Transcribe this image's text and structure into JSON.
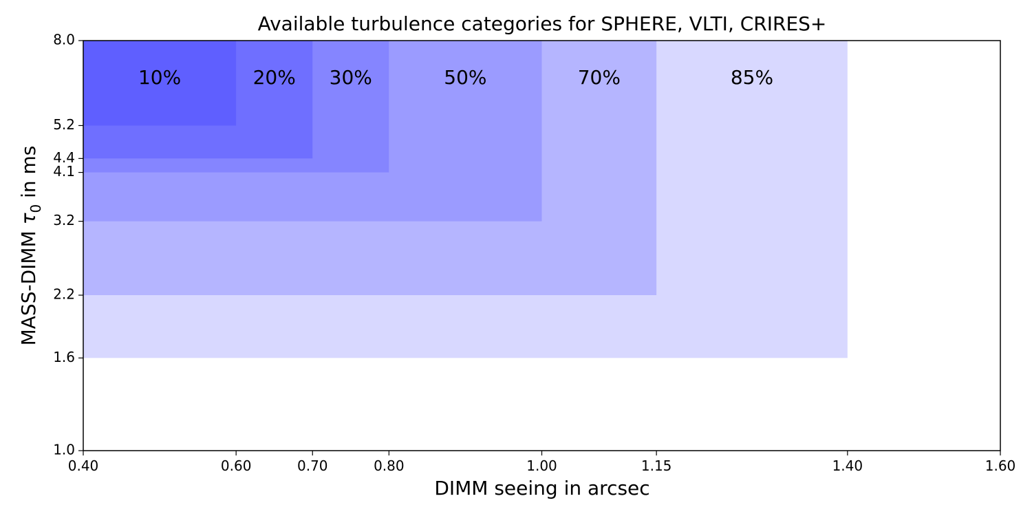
{
  "chart_data": {
    "type": "area",
    "title": "Available turbulence categories for SPHERE, VLTI, CRIRES+",
    "xlabel": "DIMM seeing in arcsec",
    "ylabel_text": "MASS-DIMM ",
    "ylabel_symbol": "τ",
    "ylabel_subscript": "0",
    "ylabel_suffix": " in ms",
    "xlim": [
      0.4,
      1.6
    ],
    "ylim": [
      1.0,
      8.0
    ],
    "xticks": [
      "0.40",
      "0.60",
      "0.70",
      "0.80",
      "1.00",
      "1.15",
      "1.40",
      "1.60"
    ],
    "yticks": [
      "1.0",
      "1.6",
      "2.2",
      "3.2",
      "4.1",
      "4.4",
      "5.2",
      "8.0"
    ],
    "grid": false,
    "regions": [
      {
        "label": "85%",
        "seeing_max": 1.4,
        "tau0_min": 1.6,
        "color": "#d8d8ff"
      },
      {
        "label": "70%",
        "seeing_max": 1.15,
        "tau0_min": 2.2,
        "color": "#b5b5ff"
      },
      {
        "label": "50%",
        "seeing_max": 1.0,
        "tau0_min": 3.2,
        "color": "#9b9bff"
      },
      {
        "label": "30%",
        "seeing_max": 0.8,
        "tau0_min": 4.1,
        "color": "#8585ff"
      },
      {
        "label": "20%",
        "seeing_max": 0.7,
        "tau0_min": 4.4,
        "color": "#6f6fff"
      },
      {
        "label": "10%",
        "seeing_max": 0.6,
        "tau0_min": 5.2,
        "color": "#5f5fff"
      }
    ]
  }
}
